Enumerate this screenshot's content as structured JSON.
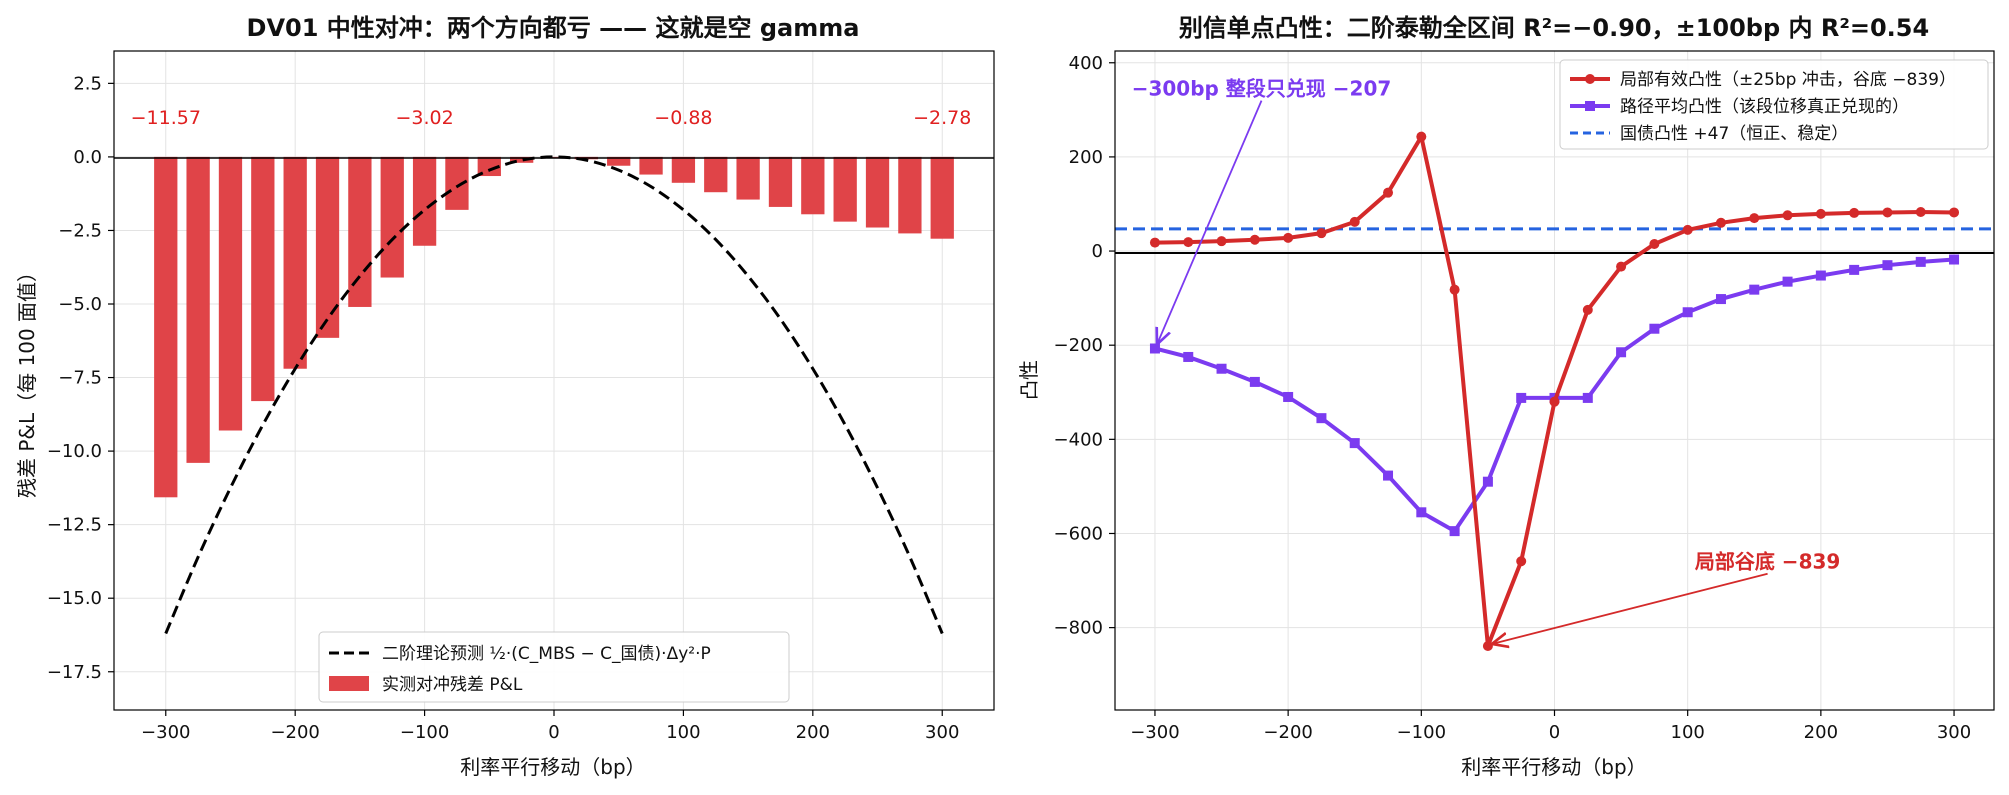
{
  "chart_data": [
    {
      "type": "bar",
      "title": "DV01 中性对冲：两个方向都亏 —— 这就是空 gamma",
      "xlabel": "利率平行移动（bp）",
      "ylabel": "残差 P&L（每 100 面值）",
      "xlim": [
        -340,
        340
      ],
      "ylim": [
        -18.8,
        3.6
      ],
      "xticks": [
        -300,
        -200,
        -100,
        0,
        100,
        200,
        300
      ],
      "xtick_labels": [
        "−300",
        "−200",
        "−100",
        "0",
        "100",
        "200",
        "300"
      ],
      "yticks": [
        2.5,
        0,
        -2.5,
        -5,
        -7.5,
        -10,
        -12.5,
        -15,
        -17.5
      ],
      "ytick_labels": [
        "2.5",
        "0.0",
        "−2.5",
        "−5.0",
        "−7.5",
        "−10.0",
        "−12.5",
        "−15.0",
        "−17.5"
      ],
      "grid": true,
      "legend_position": "bottom-center",
      "bar_color": "#e04448",
      "curve_color": "#000000",
      "bars": {
        "name": "实测对冲残差 P&L",
        "x": [
          -300,
          -275,
          -250,
          -225,
          -200,
          -175,
          -150,
          -125,
          -100,
          -75,
          -50,
          -25,
          0,
          25,
          50,
          75,
          100,
          125,
          150,
          175,
          200,
          225,
          250,
          275,
          300
        ],
        "values": [
          -11.57,
          -10.4,
          -9.3,
          -8.3,
          -7.2,
          -6.15,
          -5.1,
          -4.1,
          -3.02,
          -1.8,
          -0.65,
          -0.2,
          -0.01,
          -0.08,
          -0.3,
          -0.6,
          -0.88,
          -1.2,
          -1.45,
          -1.7,
          -1.95,
          -2.2,
          -2.4,
          -2.6,
          -2.78
        ]
      },
      "curve": {
        "name": "二阶理论预测 ½·(C_MBS − C_国债)·Δy²·P",
        "style": "dashed",
        "x": [
          -300,
          -275,
          -250,
          -225,
          -200,
          -175,
          -150,
          -125,
          -100,
          -75,
          -50,
          -25,
          0,
          25,
          50,
          75,
          100,
          125,
          150,
          175,
          200,
          225,
          250,
          275,
          300
        ],
        "y": [
          -16.2,
          -13.6,
          -11.25,
          -9.11,
          -7.2,
          -5.51,
          -4.05,
          -2.81,
          -1.8,
          -1.01,
          -0.45,
          -0.11,
          0,
          -0.11,
          -0.45,
          -1.01,
          -1.8,
          -2.81,
          -4.05,
          -5.51,
          -7.2,
          -9.11,
          -11.25,
          -13.6,
          -16.2
        ]
      },
      "annotations": [
        {
          "text": "−11.57",
          "x": -300,
          "y": 1.35
        },
        {
          "text": "−3.02",
          "x": -100,
          "y": 1.35
        },
        {
          "text": "−0.88",
          "x": 100,
          "y": 1.35
        },
        {
          "text": "−2.78",
          "x": 300,
          "y": 1.35
        }
      ],
      "annotation_color": "#e02020"
    },
    {
      "type": "line",
      "title": "别信单点凸性：二阶泰勒全区间 R²=−0.90，±100bp 内 R²=0.54",
      "xlabel": "利率平行移动（bp）",
      "ylabel": "凸性",
      "xlim": [
        -330,
        330
      ],
      "ylim": [
        -975,
        425
      ],
      "xticks": [
        -300,
        -200,
        -100,
        0,
        100,
        200,
        300
      ],
      "xtick_labels": [
        "−300",
        "−200",
        "−100",
        "0",
        "100",
        "200",
        "300"
      ],
      "yticks": [
        400,
        200,
        0,
        -200,
        -400,
        -600,
        -800
      ],
      "ytick_labels": [
        "400",
        "200",
        "0",
        "−200",
        "−400",
        "−600",
        "−800"
      ],
      "grid": true,
      "legend_position": "top-right",
      "series": [
        {
          "name": "局部有效凸性（±25bp 冲击，谷底 −839）",
          "color": "#d42a2a",
          "marker": "circle",
          "x": [
            -300,
            -275,
            -250,
            -225,
            -200,
            -175,
            -150,
            -125,
            -100,
            -75,
            -50,
            -25,
            0,
            25,
            50,
            75,
            100,
            125,
            150,
            175,
            200,
            225,
            250,
            275,
            300
          ],
          "y": [
            18,
            19,
            21,
            24,
            28,
            38,
            62,
            124,
            243,
            -82,
            -839,
            -659,
            -320,
            -125,
            -33,
            15,
            45,
            60,
            70,
            76,
            79,
            81,
            82,
            83,
            82
          ]
        },
        {
          "name": "路径平均凸性（该段位移真正兑现的）",
          "color": "#7b3bf0",
          "marker": "square",
          "x": [
            -300,
            -275,
            -250,
            -225,
            -200,
            -175,
            -150,
            -125,
            -100,
            -75,
            -50,
            -25,
            0,
            25,
            50,
            75,
            100,
            125,
            150,
            175,
            200,
            225,
            250,
            275,
            300
          ],
          "y": [
            -207,
            -225,
            -250,
            -278,
            -310,
            -355,
            -408,
            -477,
            -555,
            -595,
            -490,
            -312,
            -312,
            -312,
            -215,
            -165,
            -130,
            -102,
            -82,
            -65,
            -52,
            -40,
            -30,
            -23,
            -18
          ]
        }
      ],
      "reference_line": {
        "name": "国债凸性 +47（恒正、稳定）",
        "y": 47,
        "color": "#2563e0",
        "style": "dashed"
      },
      "annotations": [
        {
          "text": "−300bp 整段只兑现 −207",
          "x": -300,
          "y": -207,
          "text_x": -220,
          "text_y": 345,
          "color": "#7b3bf0"
        },
        {
          "text": "局部谷底 −839",
          "x": -50,
          "y": -839,
          "text_x": 160,
          "text_y": -660,
          "color": "#d42a2a"
        }
      ]
    }
  ]
}
